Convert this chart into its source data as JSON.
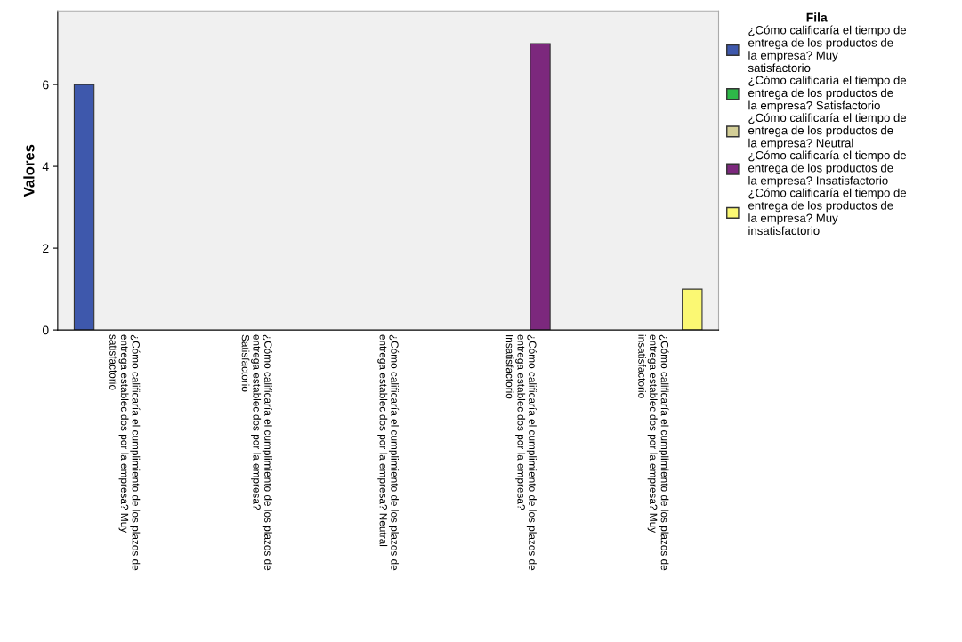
{
  "chart_data": {
    "type": "bar",
    "ylabel": "Valores",
    "legend_title": "Fila",
    "legend": "top right",
    "grid": false,
    "categories": [
      "¿Cómo calificaría el cumplimiento de los plazos de\nentrega establecidos por la empresa? Muy\nsatisfactorio",
      "¿Cómo calificaría el cumplimiento de los plazos de\nentrega establecidos por la empresa?\nSatisfactorio",
      "¿Cómo calificaría el cumplimiento de los plazos de\nentrega establecidos por la empresa? Neutral",
      "¿Cómo calificaría el cumplimiento de los plazos de\nentrega establecidos por la empresa?\nInsatisfactorio",
      "¿Cómo calificaría el cumplimiento de los plazos de\nentrega establecidos por la empresa? Muy\ninsatisfactorio"
    ],
    "series": [
      {
        "name": "¿Cómo calificaría el tiempo de\nentrega de los productos de\nla empresa? Muy\nsatisfactorio",
        "color": "#3e58ac",
        "values": [
          6,
          null,
          null,
          null,
          null
        ]
      },
      {
        "name": "¿Cómo calificaría el tiempo de\nentrega de los productos de\nla empresa? Satisfactorio",
        "color": "#2eb848",
        "values": [
          null,
          null,
          null,
          null,
          null
        ]
      },
      {
        "name": "¿Cómo calificaría el tiempo de\nentrega de los productos de\nla empresa? Neutral",
        "color": "#d3ce97",
        "values": [
          null,
          null,
          null,
          null,
          null
        ]
      },
      {
        "name": "¿Cómo calificaría el tiempo de\nentrega de los productos de\nla empresa? Insatisfactorio",
        "color": "#7c287d",
        "values": [
          null,
          null,
          null,
          7,
          null
        ]
      },
      {
        "name": "¿Cómo calificaría el tiempo de\nentrega de los productos de\nla empresa? Muy\ninsatisfactorio",
        "color": "#fbf873",
        "values": [
          null,
          null,
          null,
          null,
          1
        ]
      }
    ],
    "ylim": [
      0,
      7.8
    ],
    "yticks": [
      0,
      2,
      4,
      6
    ]
  }
}
